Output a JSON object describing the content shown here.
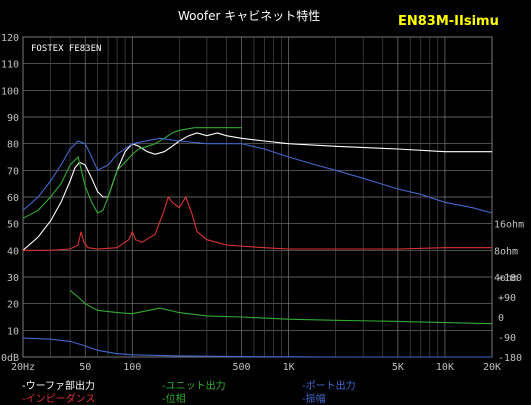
{
  "chart_data": {
    "type": "line",
    "title": "Woofer キャビネット特性",
    "model": "EN83M-IIsimu",
    "unit_label": "FOSTEX FE83EN",
    "x_scale": "log",
    "xlim": [
      20,
      20000
    ],
    "ylim_db": [
      0,
      120
    ],
    "ylim_phase": [
      -180,
      180
    ],
    "grid": true,
    "x_ticks": [
      {
        "value": 20,
        "label": "20Hz"
      },
      {
        "value": 50,
        "label": "50"
      },
      {
        "value": 100,
        "label": "100"
      },
      {
        "value": 500,
        "label": "500"
      },
      {
        "value": 1000,
        "label": "1K"
      },
      {
        "value": 5000,
        "label": "5K"
      },
      {
        "value": 10000,
        "label": "10K"
      },
      {
        "value": 20000,
        "label": "20K"
      }
    ],
    "y_ticks_left": [
      {
        "value": 120,
        "label": "120"
      },
      {
        "value": 110,
        "label": "110"
      },
      {
        "value": 100,
        "label": "100"
      },
      {
        "value": 90,
        "label": "90"
      },
      {
        "value": 80,
        "label": "80"
      },
      {
        "value": 70,
        "label": "70"
      },
      {
        "value": 60,
        "label": "60"
      },
      {
        "value": 50,
        "label": "50"
      },
      {
        "value": 40,
        "label": "40"
      },
      {
        "value": 30,
        "label": "30"
      },
      {
        "value": 20,
        "label": "20"
      },
      {
        "value": 10,
        "label": "10"
      },
      {
        "value": 0,
        "label": "0dB"
      }
    ],
    "impedance_ticks": [
      {
        "db": 50,
        "label": "16ohm"
      },
      {
        "db": 40,
        "label": "8ohm"
      },
      {
        "db": 30,
        "label": "4ohm"
      }
    ],
    "phase_ticks": [
      {
        "value": 180,
        "label": "+180"
      },
      {
        "value": 90,
        "label": "+90"
      },
      {
        "value": 0,
        "label": "0"
      },
      {
        "value": -90,
        "label": "-90"
      },
      {
        "value": -180,
        "label": "-180"
      }
    ],
    "series": [
      {
        "name": "ウーファ部出力",
        "color": "#ffffff",
        "x": [
          20,
          25,
          30,
          35,
          40,
          43,
          46,
          50,
          55,
          60,
          65,
          70,
          80,
          90,
          100,
          110,
          125,
          140,
          160,
          180,
          200,
          230,
          260,
          300,
          350,
          400,
          500,
          700,
          1000,
          2000,
          5000,
          10000,
          20000
        ],
        "values": [
          40,
          45,
          51,
          58,
          66,
          71,
          73,
          72,
          67,
          62,
          60,
          60,
          70,
          77,
          80,
          79,
          77,
          76,
          77,
          79,
          81,
          83,
          84,
          83,
          84,
          83,
          82,
          81,
          80,
          79,
          78,
          77,
          77
        ]
      },
      {
        "name": "ユニット出力",
        "color": "#33aa33",
        "x": [
          20,
          25,
          30,
          35,
          40,
          45,
          50,
          55,
          60,
          65,
          70,
          80,
          90,
          100,
          110,
          125,
          140,
          160,
          180,
          200,
          250,
          300,
          400,
          500
        ],
        "values": [
          52,
          55,
          60,
          65,
          72,
          75,
          64,
          58,
          54,
          55,
          60,
          70,
          73,
          76,
          78,
          79,
          80,
          82,
          84,
          85,
          86,
          86,
          86,
          86
        ]
      },
      {
        "name": "ポート出力",
        "color": "#4466cc",
        "x": [
          20,
          25,
          30,
          35,
          40,
          45,
          50,
          55,
          60,
          70,
          80,
          100,
          150,
          200,
          300,
          500,
          700,
          1000,
          1500,
          2000,
          3000,
          5000,
          7000,
          10000,
          15000,
          20000
        ],
        "values": [
          55,
          60,
          66,
          72,
          78,
          81,
          80,
          75,
          70,
          72,
          76,
          80,
          82,
          81,
          80,
          80,
          78,
          75,
          72,
          70,
          67,
          63,
          61,
          58,
          56,
          54
        ]
      },
      {
        "name": "インピーダンス",
        "color": "#dd3333",
        "x": [
          20,
          30,
          40,
          45,
          47,
          49,
          52,
          60,
          80,
          95,
          100,
          105,
          115,
          140,
          160,
          170,
          180,
          200,
          220,
          240,
          260,
          300,
          400,
          700,
          1000,
          2000,
          5000,
          10000,
          20000
        ],
        "values": [
          40,
          40,
          40.5,
          42,
          47,
          43,
          41,
          40.5,
          41,
          44,
          47,
          44,
          43,
          46,
          55,
          60,
          58,
          56,
          60,
          54,
          47,
          44,
          42,
          41,
          40.5,
          40.5,
          40.5,
          41,
          41
        ]
      },
      {
        "name": "位相",
        "color": "#33aa33",
        "x": [
          40,
          45,
          50,
          60,
          80,
          100,
          150,
          200,
          300,
          500,
          700,
          1000,
          2000,
          5000,
          10000,
          20000
        ],
        "values": [
          120,
          90,
          60,
          30,
          20,
          15,
          40,
          20,
          5,
          0,
          -5,
          -10,
          -15,
          -20,
          -25,
          -30
        ]
      },
      {
        "name": "振幅",
        "color": "#4466cc",
        "x": [
          20,
          30,
          40,
          50,
          60,
          80,
          100,
          200,
          500,
          1000,
          2000,
          5000,
          10000,
          20000
        ],
        "values": [
          -95,
          -100,
          -110,
          -130,
          -150,
          -165,
          -170,
          -175,
          -178,
          -179,
          -180,
          -180,
          -180,
          -180
        ]
      }
    ]
  },
  "legend": [
    {
      "label": "ウーファ部出力",
      "color": "#ffffff"
    },
    {
      "label": "ユニット出力",
      "color": "#33aa33"
    },
    {
      "label": "ポート出力",
      "color": "#4466cc"
    },
    {
      "label": "インピーダンス",
      "color": "#dd3333"
    },
    {
      "label": "位相",
      "color": "#33aa33"
    },
    {
      "label": "振幅",
      "color": "#4466cc"
    }
  ],
  "colors": {
    "background": "#000000",
    "grid": "#7a7a7a",
    "grid_minor": "#4a4a4a",
    "axis_text": "#c0c0c0",
    "title": "#ffffff",
    "model": "#ffff00",
    "unit_label": "#ffffff"
  }
}
